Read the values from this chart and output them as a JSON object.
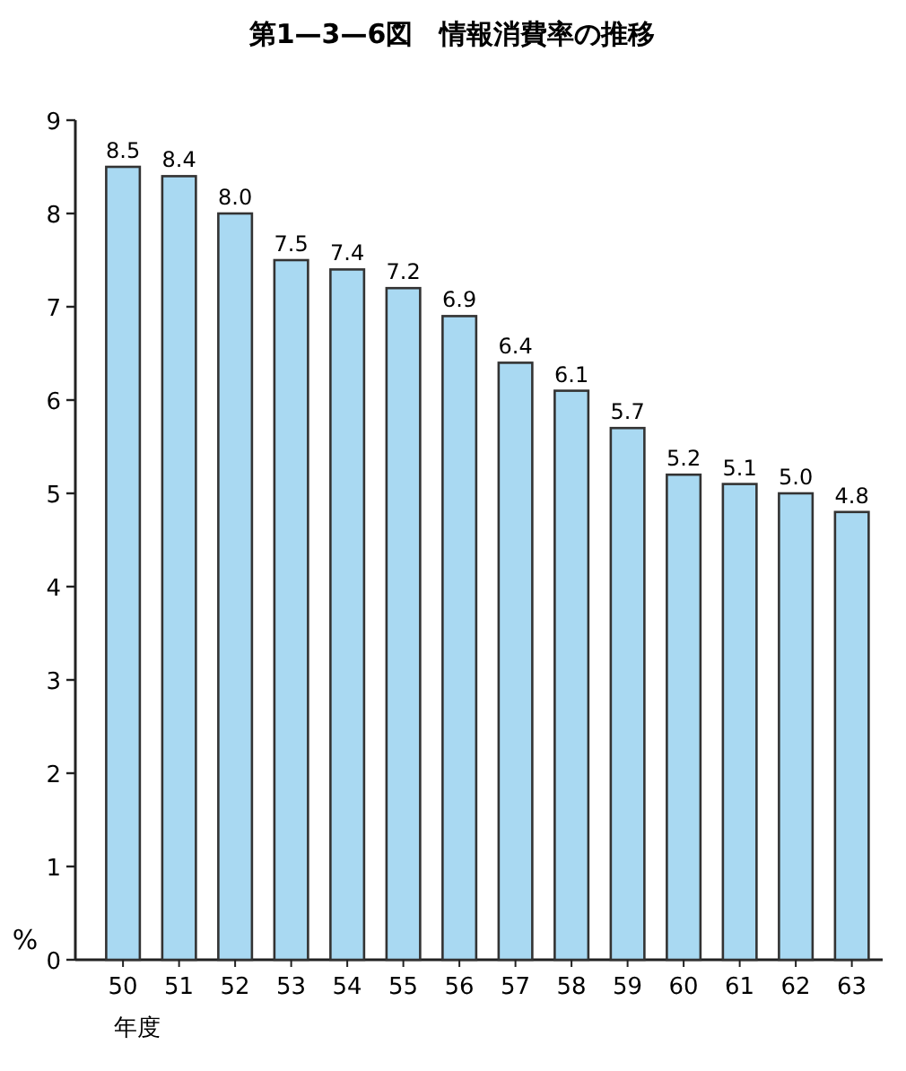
{
  "chart_data": {
    "type": "bar",
    "title": "第1—3—6図　情報消費率の推移",
    "xlabel": "年度",
    "ylabel": "%",
    "categories": [
      "50",
      "51",
      "52",
      "53",
      "54",
      "55",
      "56",
      "57",
      "58",
      "59",
      "60",
      "61",
      "62",
      "63"
    ],
    "values": [
      8.5,
      8.4,
      8.0,
      7.5,
      7.4,
      7.2,
      6.9,
      6.4,
      6.1,
      5.7,
      5.2,
      5.1,
      5.0,
      4.8
    ],
    "value_labels": [
      "8.5",
      "8.4",
      "8.0",
      "7.5",
      "7.4",
      "7.2",
      "6.9",
      "6.4",
      "6.1",
      "5.7",
      "5.2",
      "5.1",
      "5.0",
      "4.8"
    ],
    "color": "#a9d9f2",
    "ylim": [
      0,
      9
    ],
    "yticks": [
      0,
      1,
      2,
      3,
      4,
      5,
      6,
      7,
      8,
      9
    ],
    "grid": false
  }
}
